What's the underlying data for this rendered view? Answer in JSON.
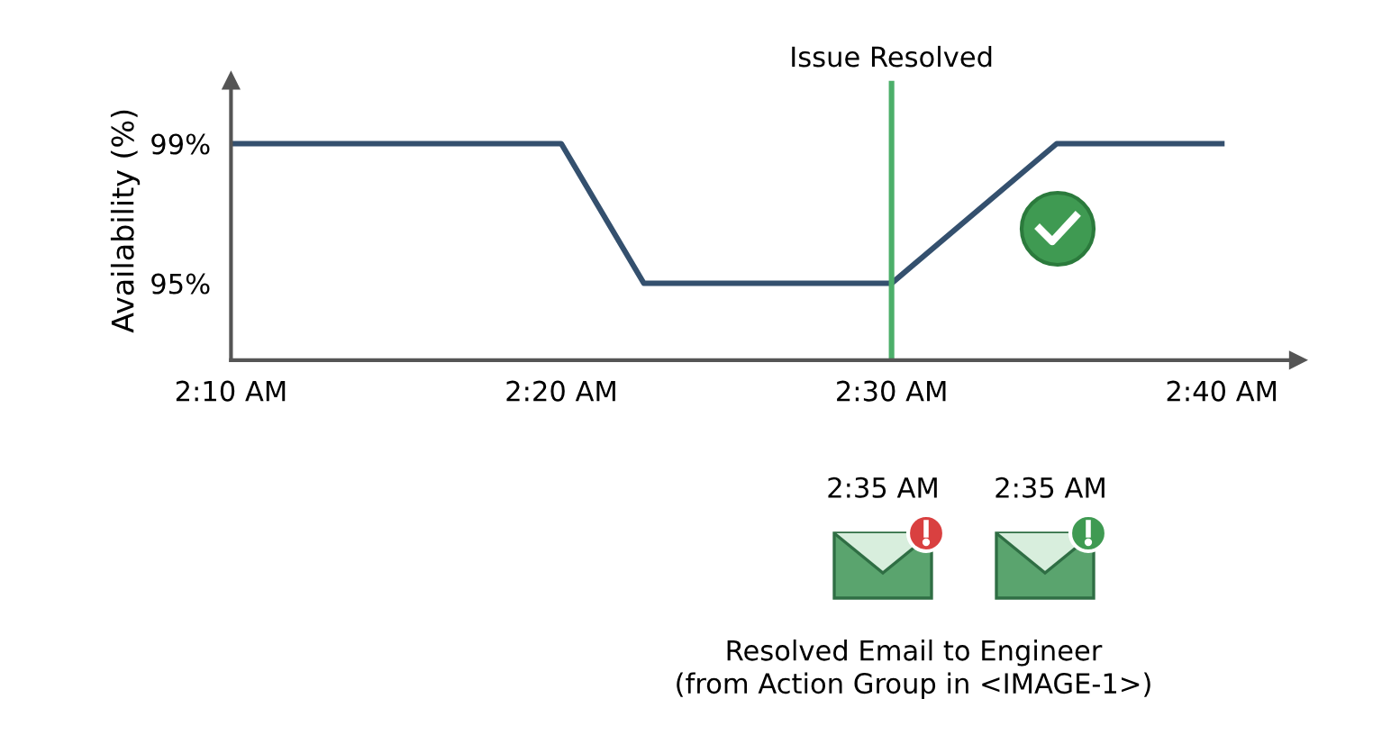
{
  "chart_data": {
    "type": "line",
    "ylabel": "Availability (%)",
    "x": [
      2.1666667,
      2.3333333,
      2.375,
      2.5,
      2.5833333,
      2.6666667
    ],
    "series": [
      {
        "color": "#34506e",
        "values": [
          99,
          99,
          95,
          95,
          99,
          99
        ]
      }
    ],
    "xlim": [
      2.1666667,
      2.705
    ],
    "ylim": [
      92.8,
      100.8
    ],
    "xticks": [
      {
        "value": 2.1666667,
        "label": "2:10 AM"
      },
      {
        "value": 2.3333333,
        "label": "2:20 AM"
      },
      {
        "value": 2.5,
        "label": "2:30 AM"
      },
      {
        "value": 2.6666667,
        "label": "2:40 AM"
      }
    ],
    "yticks": [
      {
        "value": 95,
        "label": "95%"
      },
      {
        "value": 99,
        "label": "99%"
      }
    ],
    "ref_lines": [
      {
        "axis": "x",
        "value": 2.5,
        "label": "Issue Resolved",
        "color": "#4caf6a"
      }
    ],
    "annotations": [
      "2:35 AM",
      "2:35 AM",
      "Resolved Email to Engineer\n(from Action Group in <IMAGE-1>)"
    ],
    "grid": false,
    "legend": false,
    "marker": "none",
    "line_style": "solid"
  }
}
